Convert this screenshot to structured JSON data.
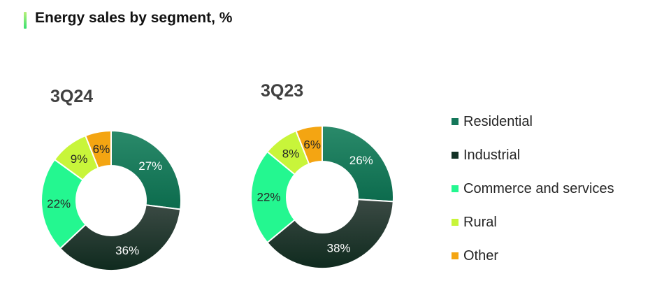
{
  "title": "Energy sales by segment, %",
  "colors": {
    "residential": "#14775a",
    "industrial": "#133226",
    "commerce": "#24f790",
    "rural": "#c8f53a",
    "other": "#f4a512"
  },
  "chart_data": [
    {
      "type": "pie",
      "title": "3Q24",
      "categories": [
        "Residential",
        "Industrial",
        "Commerce and services",
        "Rural",
        "Other"
      ],
      "values": [
        27,
        36,
        22,
        9,
        6
      ],
      "labels": [
        "27%",
        "36%",
        "22%",
        "9%",
        "6%"
      ],
      "donut": true
    },
    {
      "type": "pie",
      "title": "3Q23",
      "categories": [
        "Residential",
        "Industrial",
        "Commerce and services",
        "Rural",
        "Other"
      ],
      "values": [
        26,
        38,
        22,
        8,
        6
      ],
      "labels": [
        "26%",
        "38%",
        "22%",
        "8%",
        "6%"
      ],
      "donut": true
    }
  ],
  "legend": {
    "placement": "right",
    "items": [
      {
        "label": "Residential",
        "color": "#14775a"
      },
      {
        "label": "Industrial",
        "color": "#133226"
      },
      {
        "label": "Commerce and services",
        "color": "#24f790"
      },
      {
        "label": "Rural",
        "color": "#c8f53a"
      },
      {
        "label": "Other",
        "color": "#f4a512"
      }
    ]
  }
}
